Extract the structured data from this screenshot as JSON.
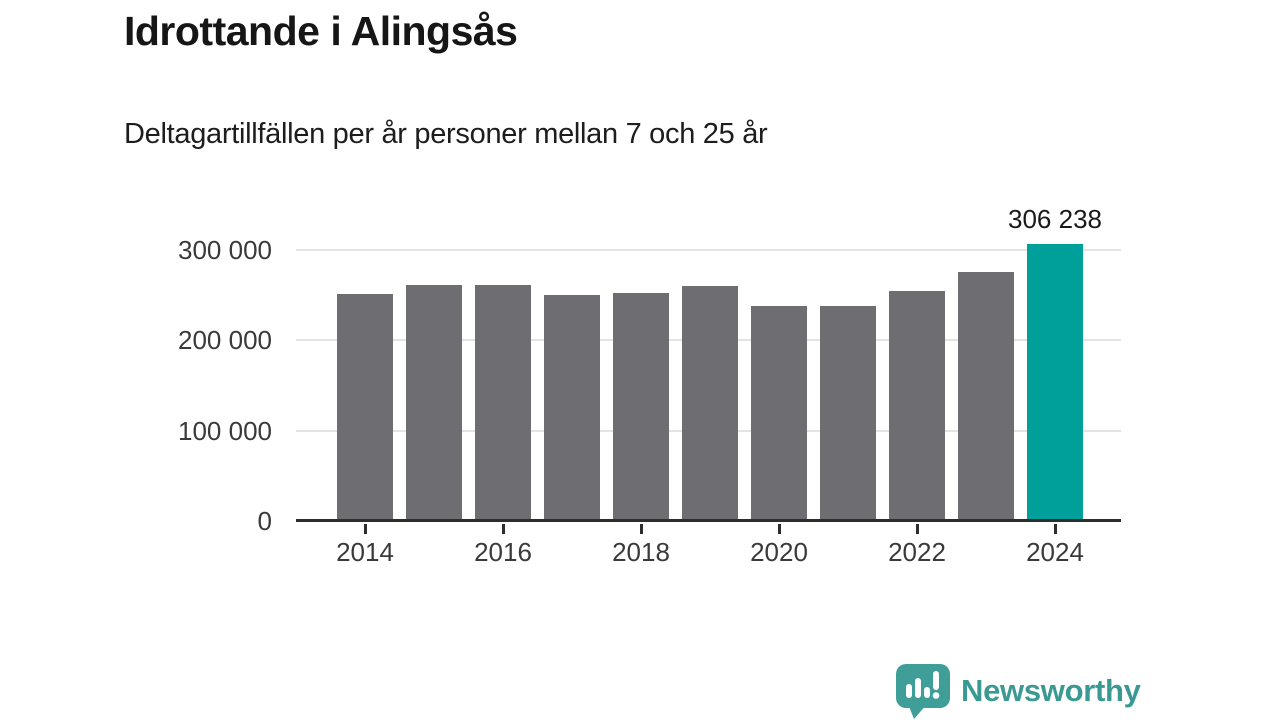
{
  "header": {
    "title": "Idrottande i Alingsås",
    "subtitle": "Deltagartillfällen per år personer mellan 7 och 25 år"
  },
  "chart_data": {
    "type": "bar",
    "categories": [
      "2014",
      "2015",
      "2016",
      "2017",
      "2018",
      "2019",
      "2020",
      "2021",
      "2022",
      "2023",
      "2024"
    ],
    "values": [
      251500,
      261500,
      261000,
      250500,
      252500,
      260000,
      238000,
      238000,
      255000,
      275500,
      306238
    ],
    "title": "Idrottande i Alingsås",
    "subtitle": "Deltagartillfällen per år personer mellan 7 och 25 år",
    "xlabel": "",
    "ylabel": "",
    "ylim": [
      0,
      355000
    ],
    "grid": true,
    "legend": "none",
    "y_ticks": [
      {
        "value": 0,
        "label": "0"
      },
      {
        "value": 100000,
        "label": "100 000"
      },
      {
        "value": 200000,
        "label": "200 000"
      },
      {
        "value": 300000,
        "label": "300 000"
      }
    ],
    "x_tick_labels": [
      "2014",
      "2016",
      "2018",
      "2020",
      "2022",
      "2024"
    ],
    "bar_color": "#6e6e72",
    "highlight": {
      "index": 10,
      "label": "306 238",
      "color": "#00a09a"
    }
  },
  "footer": {
    "brand": "Newsworthy",
    "brand_color": "#3a9a93",
    "logo_icon": "speech-bubble-bar-chart-exclamation",
    "logo_color": "#3f9e98"
  }
}
